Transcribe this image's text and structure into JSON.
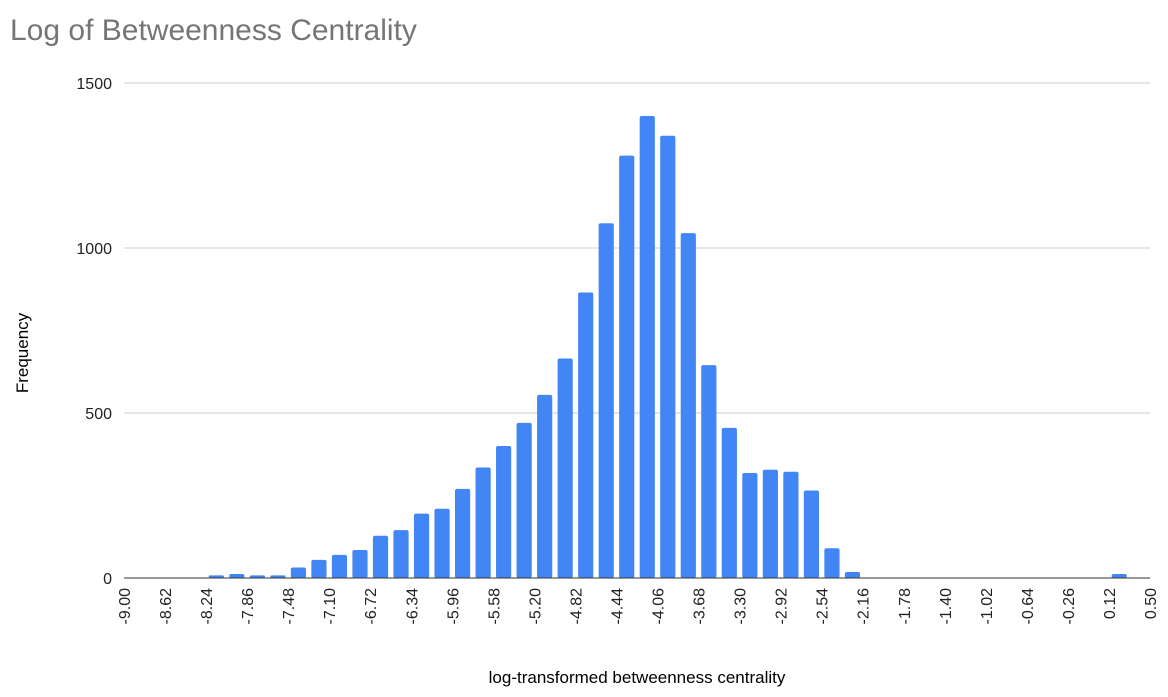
{
  "chart_data": {
    "type": "bar",
    "title": "Log of Betweenness Centrality",
    "xlabel": "log-transformed betweenness centrality",
    "ylabel": "Frequency",
    "ylim": [
      0,
      1500
    ],
    "y_ticks": [
      0,
      500,
      1000,
      1500
    ],
    "x_ticks": [
      "-9.00",
      "-8.62",
      "-8.24",
      "-7.86",
      "-7.48",
      "-7.10",
      "-6.72",
      "-6.34",
      "-5.96",
      "-5.58",
      "-5.20",
      "-4.82",
      "-4.44",
      "-4.06",
      "-3.68",
      "-3.30",
      "-2.92",
      "-2.54",
      "-2.16",
      "-1.78",
      "-1.40",
      "-1.02",
      "-0.64",
      "-0.26",
      "0.12",
      "0.50"
    ],
    "bin_width": 0.19,
    "x_start": -9.0,
    "values": [
      0,
      0,
      0,
      0,
      8,
      12,
      8,
      8,
      32,
      55,
      70,
      85,
      128,
      145,
      195,
      210,
      270,
      335,
      400,
      470,
      555,
      665,
      865,
      1075,
      1280,
      1400,
      1340,
      1045,
      645,
      455,
      318,
      328,
      322,
      265,
      90,
      18,
      0,
      0,
      0,
      0,
      0,
      0,
      0,
      0,
      0,
      0,
      0,
      0,
      12,
      0
    ],
    "grid": true,
    "legend": "none",
    "bar_color": "#4285f4"
  }
}
